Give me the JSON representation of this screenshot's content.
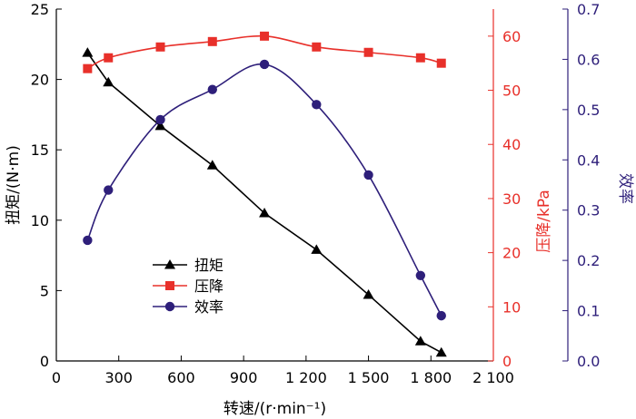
{
  "chart_data": {
    "type": "line",
    "title": "",
    "xlabel": "转速/(r·min⁻¹)",
    "x_axis": {
      "min": 0,
      "max": 2100,
      "ticks": [
        0,
        300,
        600,
        900,
        1200,
        1500,
        1800,
        2100
      ],
      "tick_labels": [
        "0",
        "300",
        "600",
        "900",
        "1 200",
        "1 500",
        "1 800",
        "2 100"
      ]
    },
    "y_axes": [
      {
        "id": "torque",
        "label": "扭矩/(N·m)",
        "side": "left",
        "min": 0,
        "max": 25,
        "ticks": [
          0,
          5,
          10,
          15,
          20,
          25
        ],
        "tick_labels": [
          "0",
          "5",
          "10",
          "15",
          "20",
          "25"
        ],
        "color": "#000000"
      },
      {
        "id": "pressure",
        "label": "压降/kPa",
        "side": "right",
        "min": 0,
        "max": 65,
        "ticks": [
          0,
          10,
          20,
          30,
          40,
          50,
          60
        ],
        "tick_labels": [
          "0",
          "10",
          "20",
          "30",
          "40",
          "50",
          "60"
        ],
        "color": "#e8302a"
      },
      {
        "id": "efficiency",
        "label": "效率",
        "side": "right-outer",
        "min": 0,
        "max": 0.7,
        "ticks": [
          0,
          0.1,
          0.2,
          0.3,
          0.4,
          0.5,
          0.6,
          0.7
        ],
        "tick_labels": [
          "0.0",
          "0.1",
          "0.2",
          "0.3",
          "0.4",
          "0.5",
          "0.6",
          "0.7"
        ],
        "color": "#2e1f7a"
      }
    ],
    "series": [
      {
        "name": "扭矩",
        "axis": "torque",
        "marker": "triangle",
        "color": "#000000",
        "x": [
          150,
          250,
          500,
          750,
          1000,
          1250,
          1500,
          1750,
          1850
        ],
        "y": [
          21.9,
          19.8,
          16.7,
          13.9,
          10.5,
          7.9,
          4.7,
          1.4,
          0.6
        ]
      },
      {
        "name": "压降",
        "axis": "pressure",
        "marker": "square",
        "color": "#e8302a",
        "x": [
          150,
          250,
          500,
          750,
          1000,
          1250,
          1500,
          1750,
          1850
        ],
        "y": [
          54,
          56,
          58,
          59,
          60,
          58,
          57,
          56,
          55
        ]
      },
      {
        "name": "效率",
        "axis": "efficiency",
        "marker": "circle",
        "color": "#2e1f7a",
        "x": [
          150,
          250,
          500,
          750,
          1000,
          1250,
          1500,
          1750,
          1850
        ],
        "y": [
          0.24,
          0.34,
          0.48,
          0.54,
          0.59,
          0.51,
          0.37,
          0.17,
          0.09
        ]
      }
    ],
    "legend": {
      "placement": "center-left"
    },
    "grid": false
  }
}
